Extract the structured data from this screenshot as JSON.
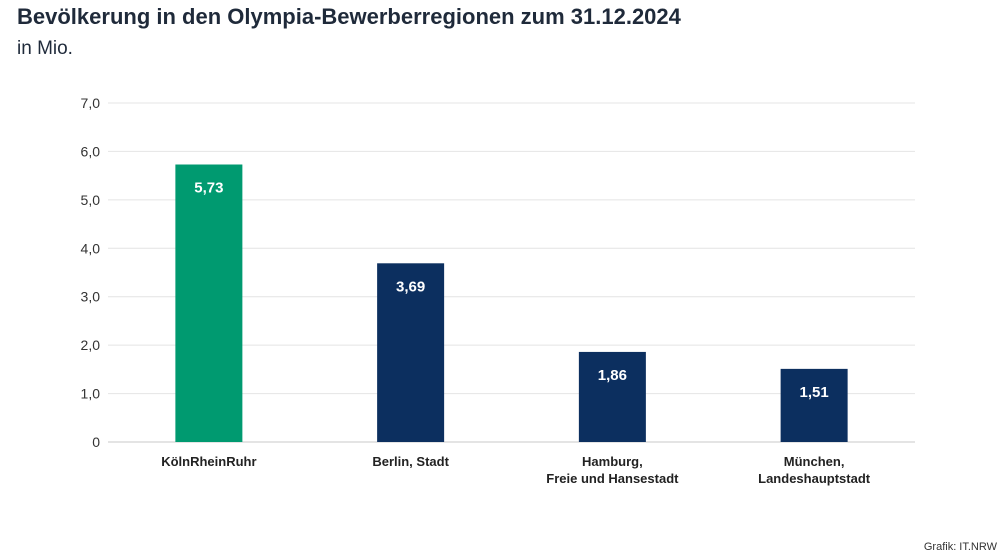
{
  "title": "Bevölkerung in den Olympia-Bewerberregionen zum 31.12.2024",
  "subtitle": "in Mio.",
  "source": "Grafik: IT.NRW",
  "chart_data": {
    "type": "bar",
    "title": "Bevölkerung in den Olympia-Bewerberregionen zum 31.12.2024",
    "subtitle": "in Mio.",
    "ylim": [
      0,
      7
    ],
    "yticks": [
      "0",
      "1,0",
      "2,0",
      "3,0",
      "4,0",
      "5,0",
      "6,0",
      "7,0"
    ],
    "grid": true,
    "categories": [
      [
        "KölnRheinRuhr"
      ],
      [
        "Berlin, Stadt"
      ],
      [
        "Hamburg,",
        "Freie und Hansestadt"
      ],
      [
        "München,",
        "Landeshauptstadt"
      ]
    ],
    "values": [
      5.73,
      3.69,
      1.86,
      1.51
    ],
    "value_labels": [
      "5,73",
      "3,69",
      "1,86",
      "1,51"
    ],
    "colors": [
      "#009a70",
      "#0c2f5f",
      "#0c2f5f",
      "#0c2f5f"
    ]
  }
}
